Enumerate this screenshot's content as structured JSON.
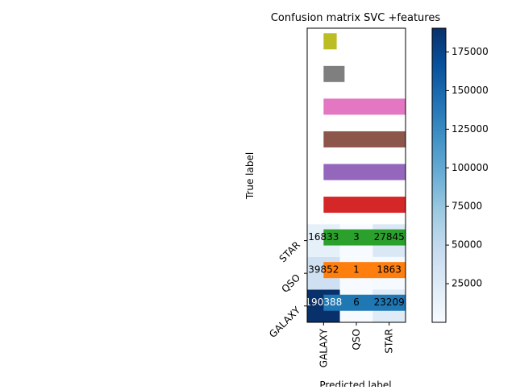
{
  "chart_data": {
    "type": "heatmap",
    "title": "Confusion matrix SVC +features",
    "xlabel": "Predicted label",
    "ylabel": "True label",
    "column_labels": [
      "GALAXY",
      "QSO",
      "STAR"
    ],
    "row_labels": [
      "GALAXY",
      "QSO",
      "STAR"
    ],
    "matrix": [
      [
        190388,
        6,
        23209
      ],
      [
        39852,
        1,
        1863
      ],
      [
        16833,
        3,
        27845
      ]
    ],
    "colormap": [
      "#f7fbff",
      "#deebf7",
      "#c6dbef",
      "#9ecae1",
      "#6baed6",
      "#4292c6",
      "#2171b5",
      "#08519c",
      "#08306b"
    ],
    "clim": [
      1,
      190388
    ],
    "cticks": [
      25000,
      50000,
      75000,
      100000,
      125000,
      150000,
      175000
    ],
    "xlim": [
      -0.5,
      2.5
    ],
    "ylim": [
      -0.5,
      8.5
    ],
    "bars": {
      "values": [
        2.5,
        2.5,
        2.5,
        2.5,
        2.5,
        2.5,
        2.5,
        0.64,
        0.4
      ],
      "colors": [
        "#1f77b4",
        "#ff7f0e",
        "#2ca02c",
        "#d62728",
        "#9467bd",
        "#8c564b",
        "#e377c2",
        "#7f7f7f",
        "#bcbd22"
      ]
    }
  }
}
